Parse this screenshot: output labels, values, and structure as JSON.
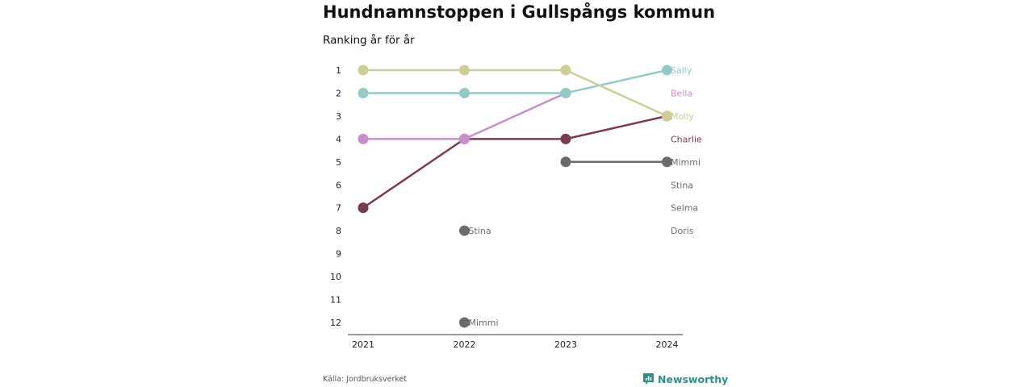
{
  "header": {
    "title": "Hundnamnstoppen i Gullspångs kommun",
    "subtitle": "Ranking år för år"
  },
  "footer": {
    "source": "Källa: Jordbruksverket",
    "brand": "Newsworthy"
  },
  "colors": {
    "brand": "#2f8f83"
  },
  "chart_data": {
    "type": "line",
    "title": "Hundnamnstoppen i Gullspångs kommun",
    "subtitle": "Ranking år för år",
    "x": [
      "2021",
      "2022",
      "2023",
      "2024"
    ],
    "y_ticks": [
      "1",
      "2",
      "3",
      "4",
      "5",
      "6",
      "7",
      "8",
      "9",
      "10",
      "11",
      "12"
    ],
    "ylim": [
      1,
      12
    ],
    "y_inverted": true,
    "grid": false,
    "series": [
      {
        "name": "Stina",
        "color": "#6b6b6e",
        "values": [
          7,
          8,
          null,
          null
        ],
        "connected": false
      },
      {
        "name": "Mimmi",
        "color": "#6b6b6e",
        "values": [
          null,
          12,
          5,
          5
        ],
        "connected": true,
        "connect_from": 2
      },
      {
        "name": "Charlie",
        "color": "#7a3b52",
        "values": [
          7,
          4,
          4,
          3
        ],
        "connected": true
      },
      {
        "name": "Bella",
        "color": "#c88fcb",
        "values": [
          4,
          4,
          2,
          null
        ],
        "connected": true
      },
      {
        "name": "Sally",
        "color": "#94c9c6",
        "values": [
          2,
          2,
          2,
          1
        ],
        "connected": true
      },
      {
        "name": "Molly",
        "color": "#cfcd98",
        "values": [
          1,
          1,
          1,
          3
        ],
        "connected": true
      }
    ],
    "point_labels": [
      {
        "text": "Stina",
        "x": "2022",
        "y": 8,
        "color": "#6b6b6e"
      },
      {
        "text": "Mimmi",
        "x": "2022",
        "y": 12,
        "color": "#6b6b6e"
      }
    ],
    "end_labels": [
      {
        "text": "Sally",
        "rank": 1,
        "color": "#94c9c6"
      },
      {
        "text": "Bella",
        "rank": 2,
        "color": "#c88fcb"
      },
      {
        "text": "Molly",
        "rank": 3,
        "color": "#cfcd98"
      },
      {
        "text": "Charlie",
        "rank": 4,
        "color": "#7a3b52"
      },
      {
        "text": "Mimmi",
        "rank": 5,
        "color": "#6b6b6e"
      },
      {
        "text": "Stina",
        "rank": 6,
        "color": "#6b6b6e"
      },
      {
        "text": "Selma",
        "rank": 7,
        "color": "#6b6b6e"
      },
      {
        "text": "Doris",
        "rank": 8,
        "color": "#6b6b6e"
      }
    ]
  }
}
